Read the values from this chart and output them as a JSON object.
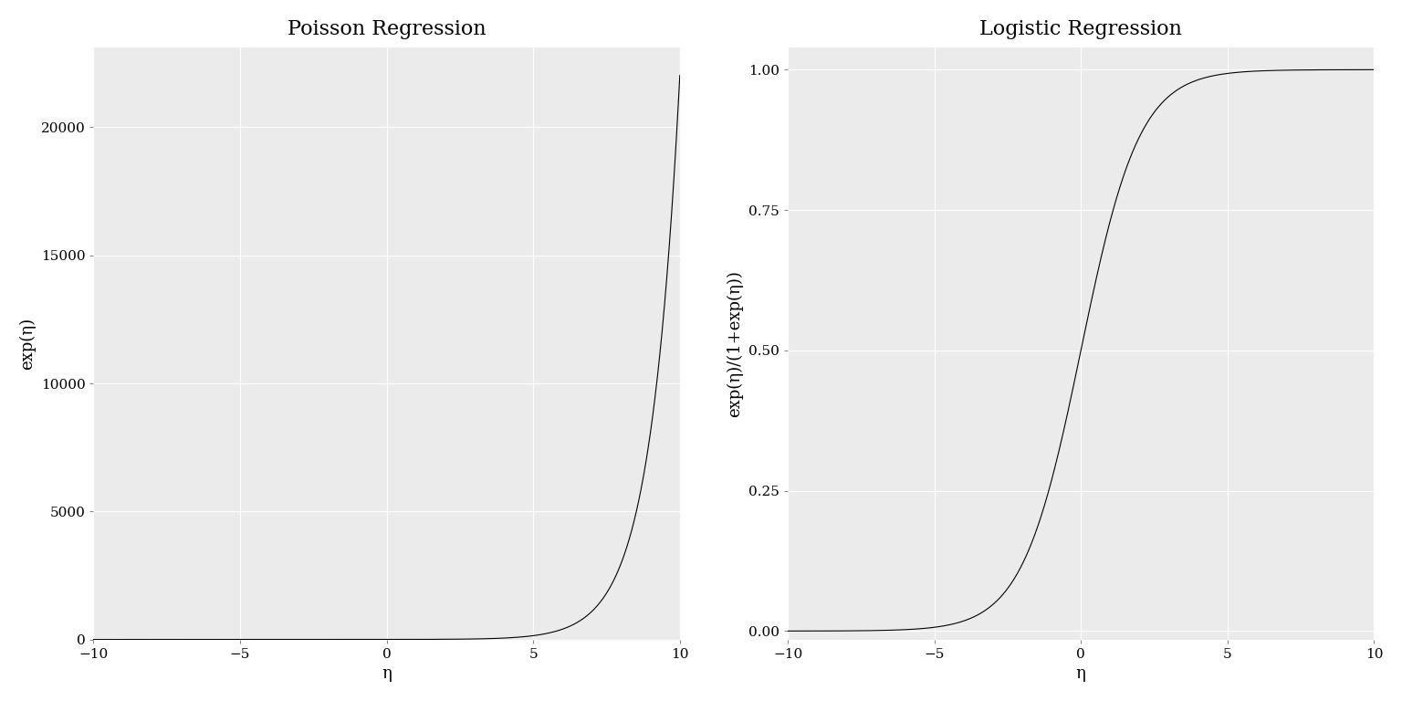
{
  "poisson_title": "Poisson Regression",
  "logistic_title": "Logistic Regression",
  "xlabel": "η",
  "poisson_ylabel": "exp(η)",
  "logistic_ylabel": "exp(η)/(1+exp(η))",
  "x_min": -10,
  "x_max": 10,
  "x_ticks": [
    -10,
    -5,
    0,
    5,
    10
  ],
  "poisson_yticks": [
    0,
    5000,
    10000,
    15000,
    20000
  ],
  "logistic_yticks": [
    0.0,
    0.25,
    0.5,
    0.75,
    1.0
  ],
  "background_color": "#EBEBEB",
  "line_color": "#000000",
  "grid_color": "#FFFFFF",
  "title_fontsize": 16,
  "label_fontsize": 13,
  "tick_fontsize": 11,
  "line_width": 0.8
}
